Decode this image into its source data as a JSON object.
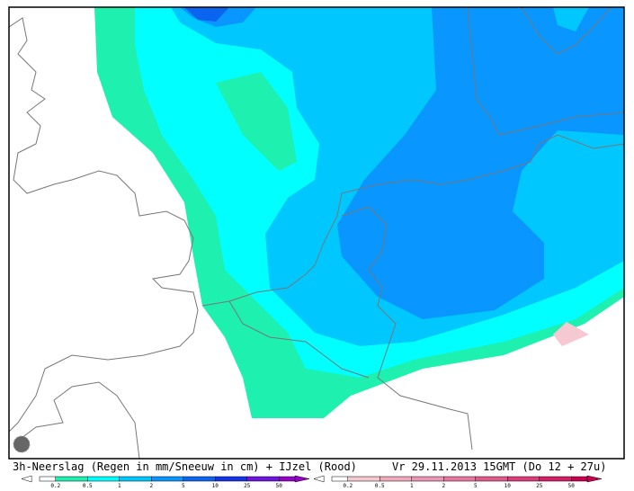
{
  "footer": {
    "title": "3h-Neerslag (Regen in mm/Sneeuw in cm) + IJzel (Rood)",
    "valid_time": "Vr 29.11.2013 15GMT (Do 12 + 27u)"
  },
  "legends": [
    {
      "labels": [
        "0.2",
        "0.5",
        "1",
        "2",
        "5",
        "10",
        "25",
        "50"
      ],
      "colors": [
        "#ffffff",
        "#1ef0b0",
        "#00ffff",
        "#00c8ff",
        "#0a96ff",
        "#0a64f0",
        "#1432e6",
        "#6e14dc",
        "#9600c8"
      ]
    },
    {
      "labels": [
        "0.2",
        "0.5",
        "1",
        "2",
        "5",
        "10",
        "25",
        "50"
      ],
      "colors": [
        "#ffffff",
        "#f5c8d2",
        "#f0aabe",
        "#eb96b4",
        "#e678a0",
        "#e15a8c",
        "#dc3c78",
        "#d21e64",
        "#c80050"
      ]
    }
  ]
}
